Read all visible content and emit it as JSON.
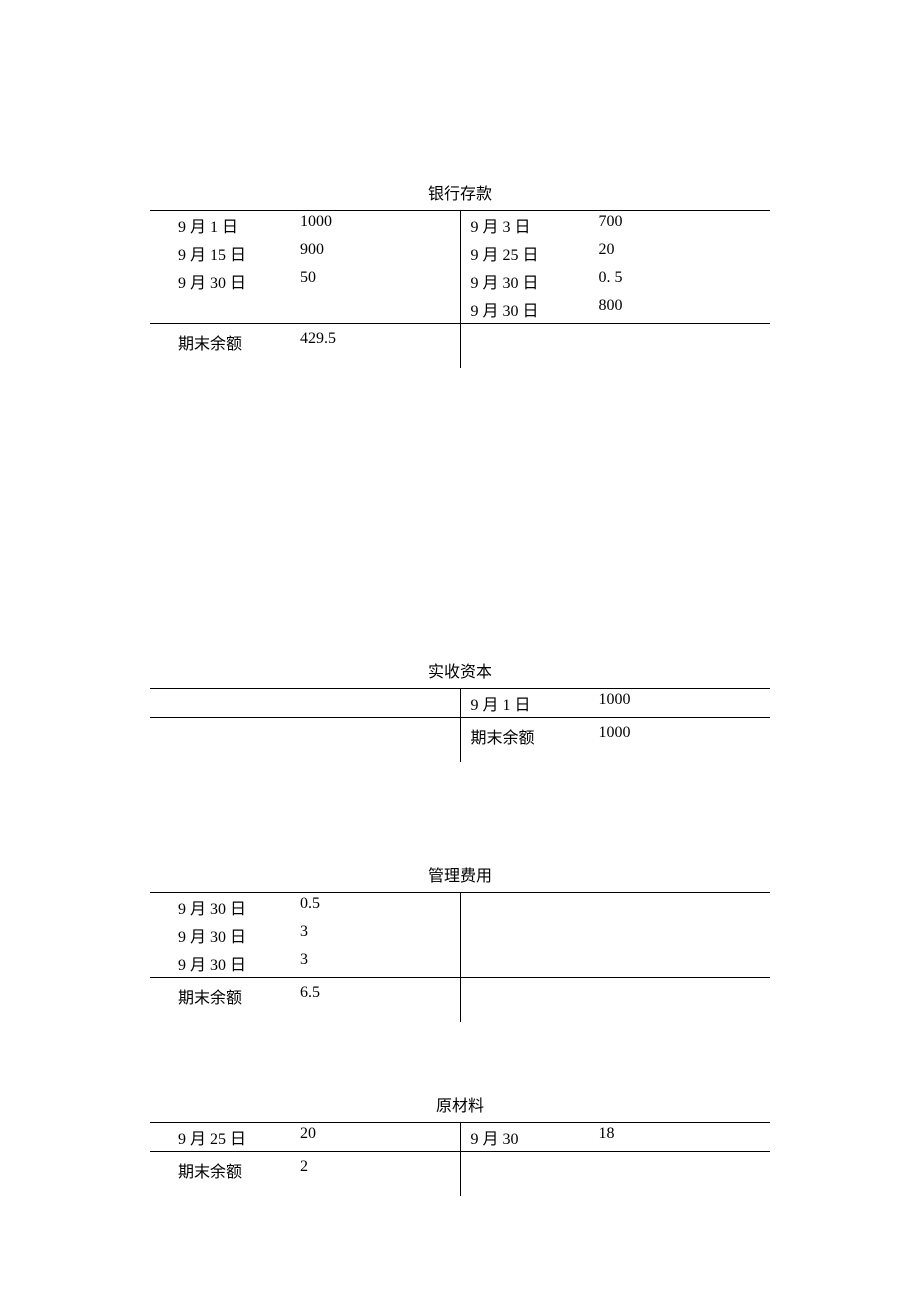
{
  "accounts": [
    {
      "title": "银行存款",
      "left": [
        {
          "date": "9 月 1 日",
          "value": "1000"
        },
        {
          "date": "9 月 15 日",
          "value": "900"
        },
        {
          "date": "9 月 30 日",
          "value": "50"
        }
      ],
      "right": [
        {
          "date": "9 月 3 日",
          "value": "700"
        },
        {
          "date": "9 月 25 日",
          "value": "20"
        },
        {
          "date": "9 月 30 日",
          "value": "0. 5"
        },
        {
          "date": "9 月 30 日",
          "value": "800"
        }
      ],
      "balance_side": "left",
      "balance_label": "期末余额",
      "balance_value": "429.5"
    },
    {
      "title": "实收资本",
      "left": [],
      "right": [
        {
          "date": "9 月 1 日",
          "value": "1000"
        }
      ],
      "balance_side": "right",
      "balance_label": "期末余额",
      "balance_value": "1000"
    },
    {
      "title": "管理费用",
      "left": [
        {
          "date": "9 月 30 日",
          "value": "0.5"
        },
        {
          "date": "9 月 30 日",
          "value": "3"
        },
        {
          "date": "9 月 30 日",
          "value": "3"
        }
      ],
      "right": [],
      "balance_side": "left",
      "balance_label": "期末余额",
      "balance_value": "6.5"
    },
    {
      "title": "原材料",
      "left": [
        {
          "date": "9 月 25 日",
          "value": "20"
        }
      ],
      "right": [
        {
          "date": "9 月 30",
          "value": "18"
        }
      ],
      "balance_side": "left",
      "balance_label": "期末余额",
      "balance_value": "2"
    }
  ],
  "colors": {
    "text": "#000000",
    "background": "#ffffff",
    "border": "#000000"
  },
  "typography": {
    "font_family": "SimSun",
    "font_size_pt": 12
  }
}
